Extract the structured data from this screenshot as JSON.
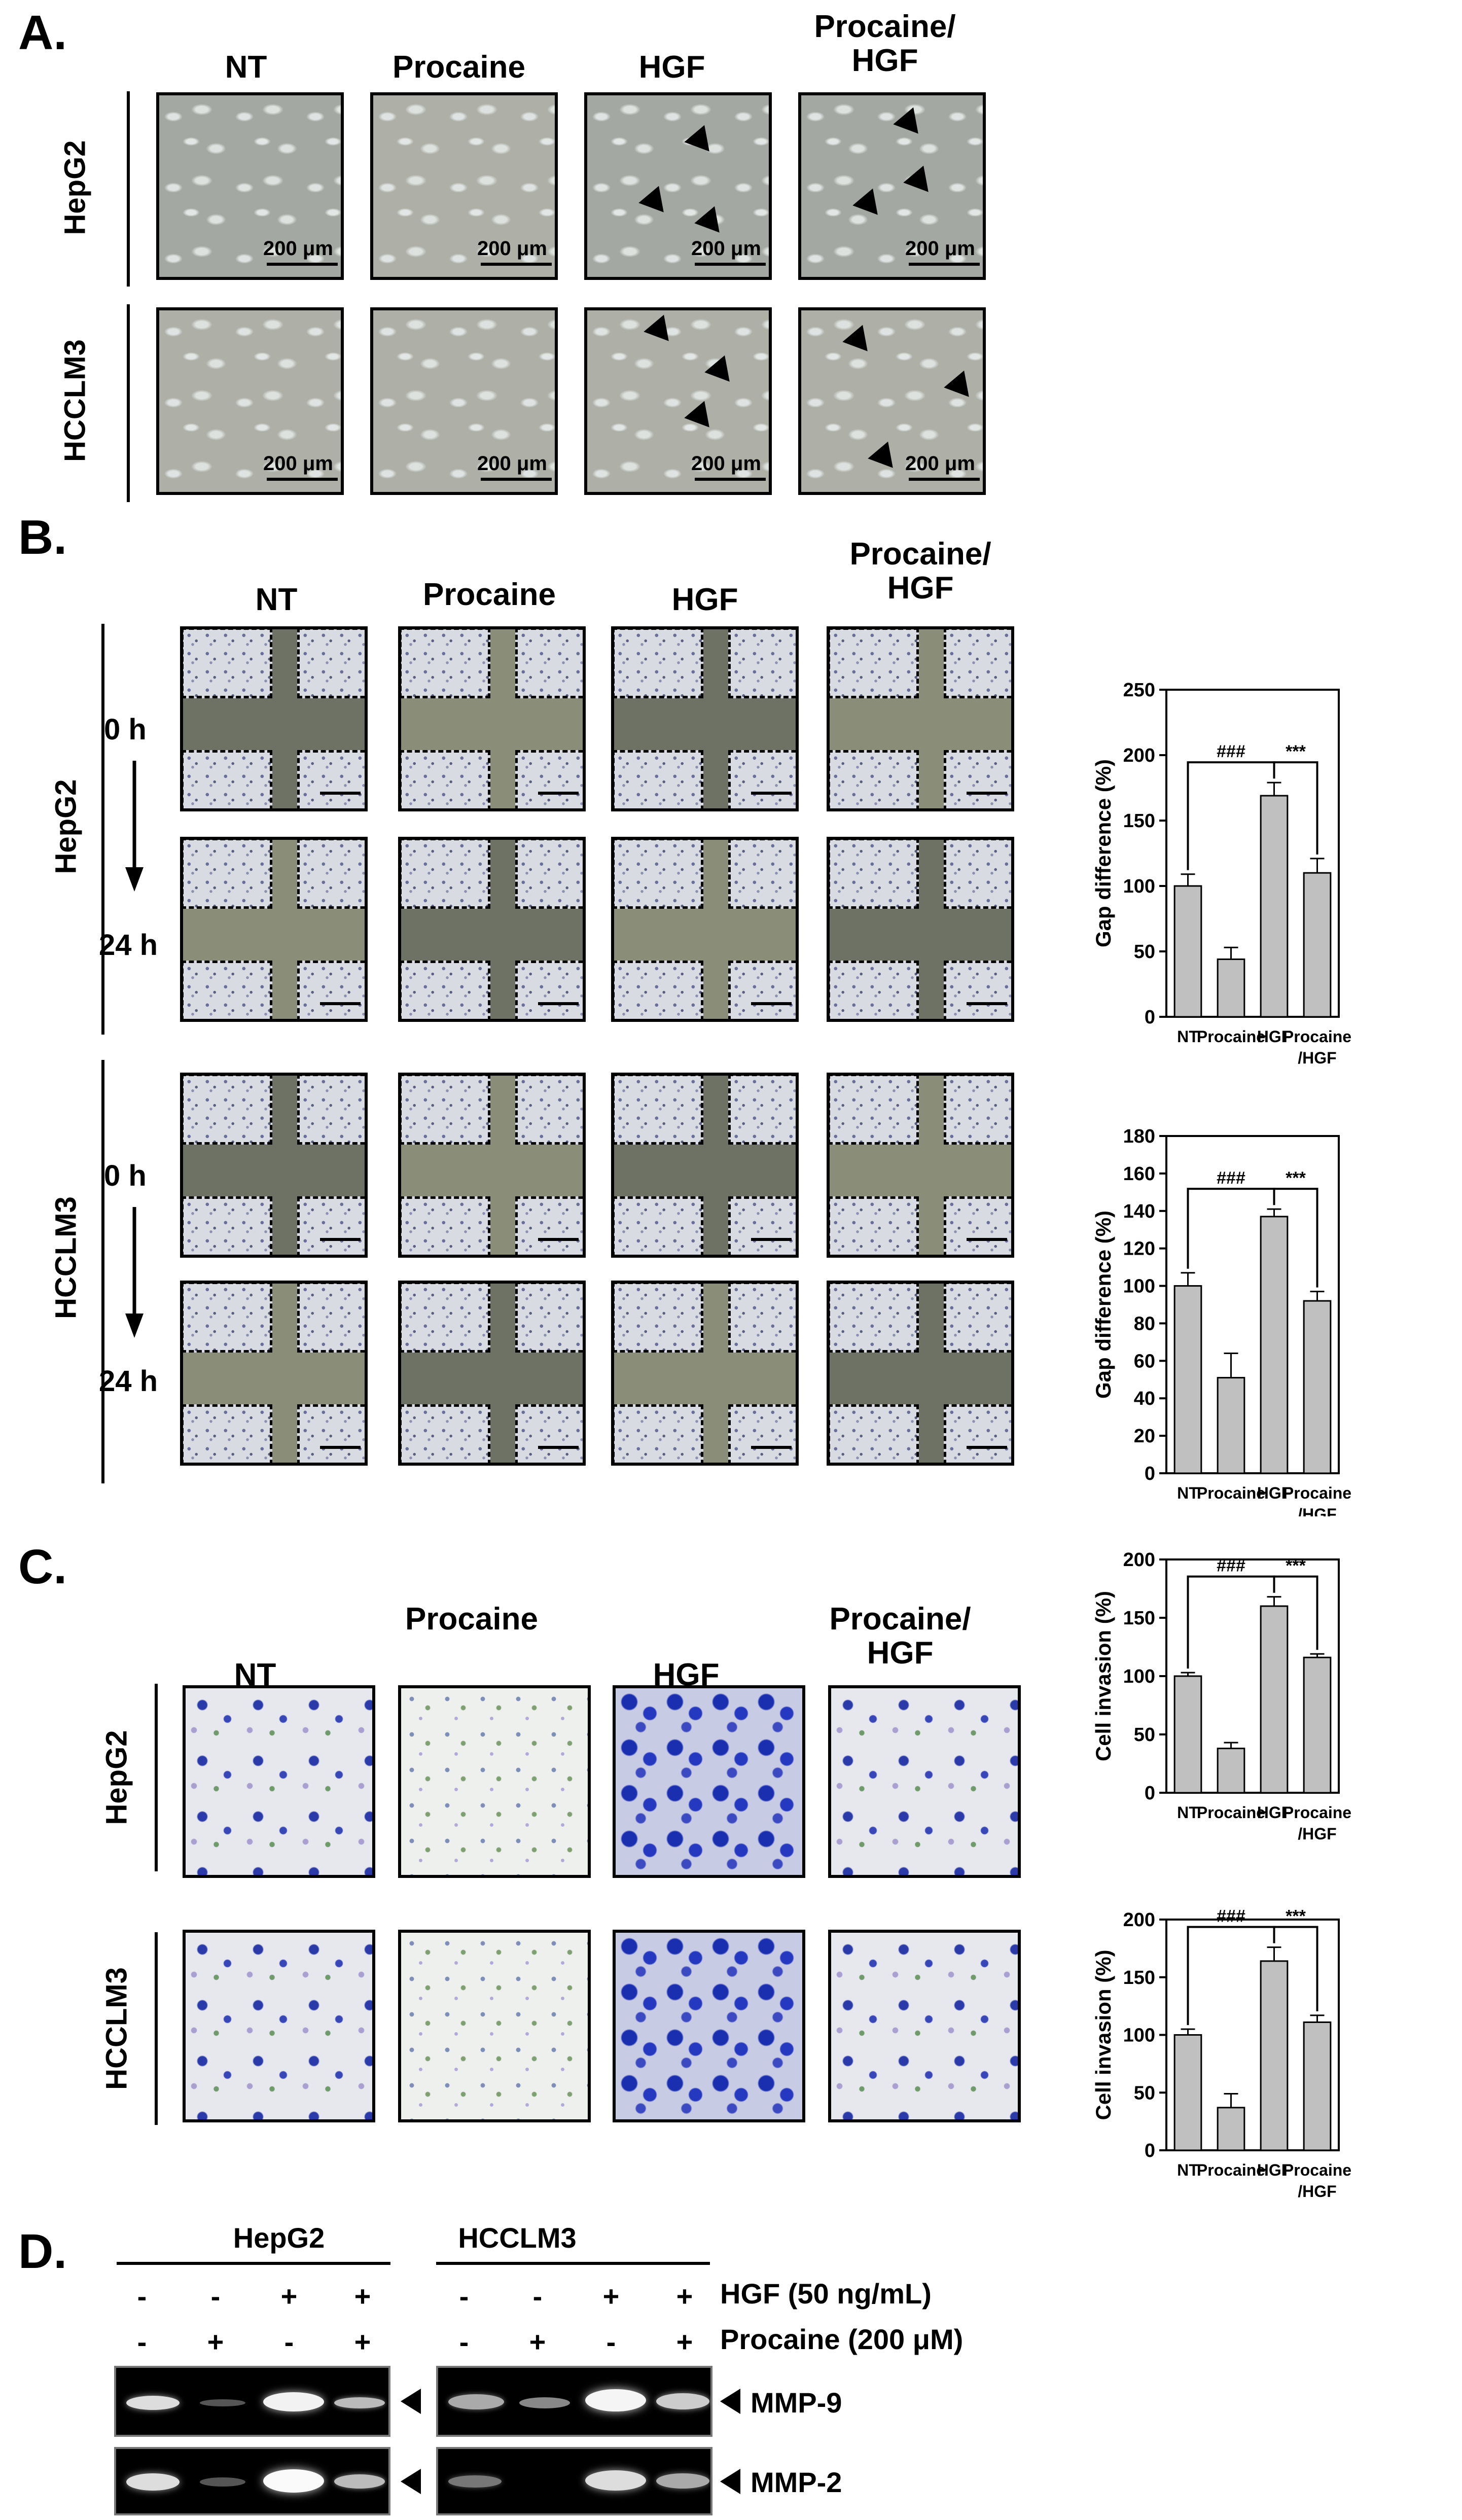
{
  "panels": {
    "A": "A.",
    "B": "B.",
    "C": "C.",
    "D": "D."
  },
  "columns": {
    "nt": "NT",
    "procaine": "Procaine",
    "hgf": "HGF",
    "combo_line1": "Procaine/",
    "combo_line2": "HGF"
  },
  "cell_lines": {
    "hepg2": "HepG2",
    "hcclm3": "HCCLM3"
  },
  "scale_bar": "200 μm",
  "timepoints": {
    "t0": "0 h",
    "t24": "24 h"
  },
  "chart_data": [
    {
      "type": "bar",
      "id": "gap-hepg2",
      "ylabel": "Gap difference (%)",
      "categories": [
        "NT",
        "Procaine",
        "HGF",
        "Procaine/HGF"
      ],
      "category_labels": [
        [
          "NT"
        ],
        [
          "Procaine"
        ],
        [
          "HGF"
        ],
        [
          "Procaine",
          "/HGF"
        ]
      ],
      "values": [
        100,
        44,
        169,
        110
      ],
      "errors": [
        9,
        9,
        10,
        11
      ],
      "ylim": [
        0,
        250
      ],
      "ticks": [
        0,
        50,
        100,
        150,
        200,
        250
      ],
      "annotations": [
        {
          "text": "###",
          "from": 0,
          "to": 2
        },
        {
          "text": "***",
          "from": 2,
          "to": 3
        }
      ]
    },
    {
      "type": "bar",
      "id": "gap-hcclm3",
      "ylabel": "Gap difference (%)",
      "categories": [
        "NT",
        "Procaine",
        "HGF",
        "Procaine/HGF"
      ],
      "category_labels": [
        [
          "NT"
        ],
        [
          "Procaine"
        ],
        [
          "HGF"
        ],
        [
          "Procaine",
          "/HGF"
        ]
      ],
      "values": [
        100,
        51,
        137,
        92
      ],
      "errors": [
        7,
        13,
        4,
        5
      ],
      "ylim": [
        0,
        180
      ],
      "ticks": [
        0,
        20,
        40,
        60,
        80,
        100,
        120,
        140,
        160,
        180
      ],
      "annotations": [
        {
          "text": "###",
          "from": 0,
          "to": 2
        },
        {
          "text": "***",
          "from": 2,
          "to": 3
        }
      ]
    },
    {
      "type": "bar",
      "id": "inv-hepg2",
      "ylabel": "Cell invasion (%)",
      "categories": [
        "NT",
        "Procaine",
        "HGF",
        "Procaine/HGF"
      ],
      "category_labels": [
        [
          "NT"
        ],
        [
          "Procaine"
        ],
        [
          "HGF"
        ],
        [
          "Procaine",
          "/HGF"
        ]
      ],
      "values": [
        100,
        38,
        160,
        116
      ],
      "errors": [
        3,
        5,
        8,
        3
      ],
      "ylim": [
        0,
        200
      ],
      "ticks": [
        0,
        50,
        100,
        150,
        200
      ],
      "annotations": [
        {
          "text": "###",
          "from": 0,
          "to": 2
        },
        {
          "text": "***",
          "from": 2,
          "to": 3
        }
      ]
    },
    {
      "type": "bar",
      "id": "inv-hcclm3",
      "ylabel": "Cell invasion (%)",
      "categories": [
        "NT",
        "Procaine",
        "HGF",
        "Procaine/HGF"
      ],
      "category_labels": [
        [
          "NT"
        ],
        [
          "Procaine"
        ],
        [
          "HGF"
        ],
        [
          "Procaine",
          "/HGF"
        ]
      ],
      "values": [
        100,
        37,
        164,
        111
      ],
      "errors": [
        5,
        12,
        12,
        6
      ],
      "ylim": [
        0,
        200
      ],
      "ticks": [
        0,
        50,
        100,
        150,
        200
      ],
      "annotations": [
        {
          "text": "###",
          "from": 0,
          "to": 2
        },
        {
          "text": "***",
          "from": 2,
          "to": 3
        }
      ]
    }
  ],
  "blot": {
    "hgf_label": "HGF (50 ng/mL)",
    "procaine_label": "Procaine (200 μM)",
    "hgf_signs": [
      "-",
      "-",
      "+",
      "+"
    ],
    "procaine_signs": [
      "-",
      "+",
      "-",
      "+"
    ],
    "mmp9": "MMP-9",
    "mmp2": "MMP-2"
  }
}
